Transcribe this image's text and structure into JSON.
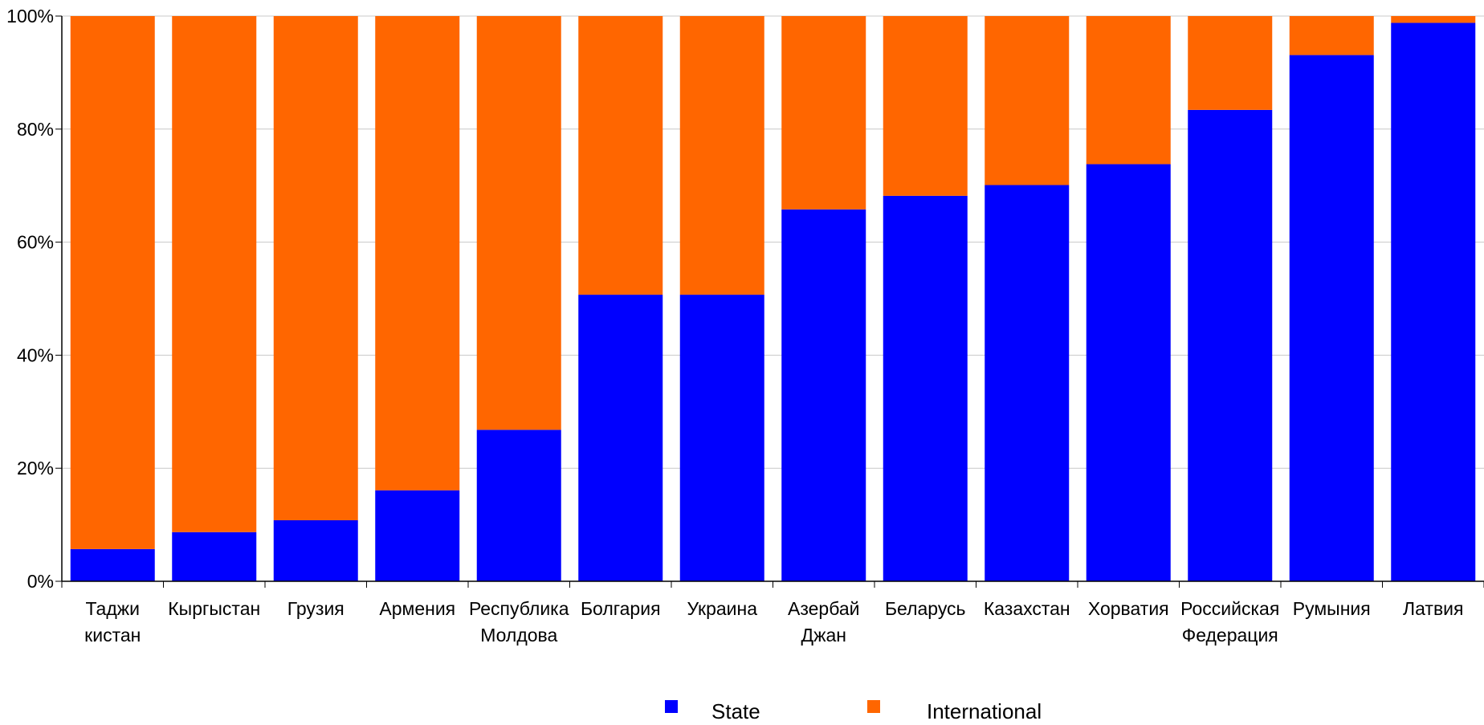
{
  "chart_data": {
    "type": "bar",
    "stacked": true,
    "percent": true,
    "categories": [
      [
        "Таджи",
        "кистан"
      ],
      [
        "Кыргыстан"
      ],
      [
        "Грузия"
      ],
      [
        "Армения"
      ],
      [
        "Республика",
        "Молдова"
      ],
      [
        "Болгария"
      ],
      [
        "Украина"
      ],
      [
        "Азербай",
        "Джан"
      ],
      [
        "Беларусь"
      ],
      [
        "Казахстан"
      ],
      [
        "Хорватия"
      ],
      [
        "Российская",
        "Федерация"
      ],
      [
        "Румыния"
      ],
      [
        "Латвия"
      ]
    ],
    "series": [
      {
        "name": "State",
        "color": "#0000ff",
        "values": [
          5.7,
          8.7,
          10.8,
          16.1,
          26.8,
          50.7,
          50.7,
          65.8,
          68.2,
          70.1,
          73.8,
          83.4,
          93.1,
          98.8
        ]
      },
      {
        "name": "International",
        "color": "#ff6600",
        "values": [
          94.3,
          91.3,
          89.2,
          83.9,
          73.2,
          49.3,
          49.3,
          34.2,
          31.8,
          29.9,
          26.2,
          16.6,
          6.9,
          1.2
        ]
      }
    ],
    "ylim": [
      0,
      100
    ],
    "yticks": [
      "0%",
      "20%",
      "40%",
      "60%",
      "80%",
      "100%"
    ],
    "grid": true,
    "gridColor": "#c8c8c8",
    "legend": "bottom-center"
  }
}
